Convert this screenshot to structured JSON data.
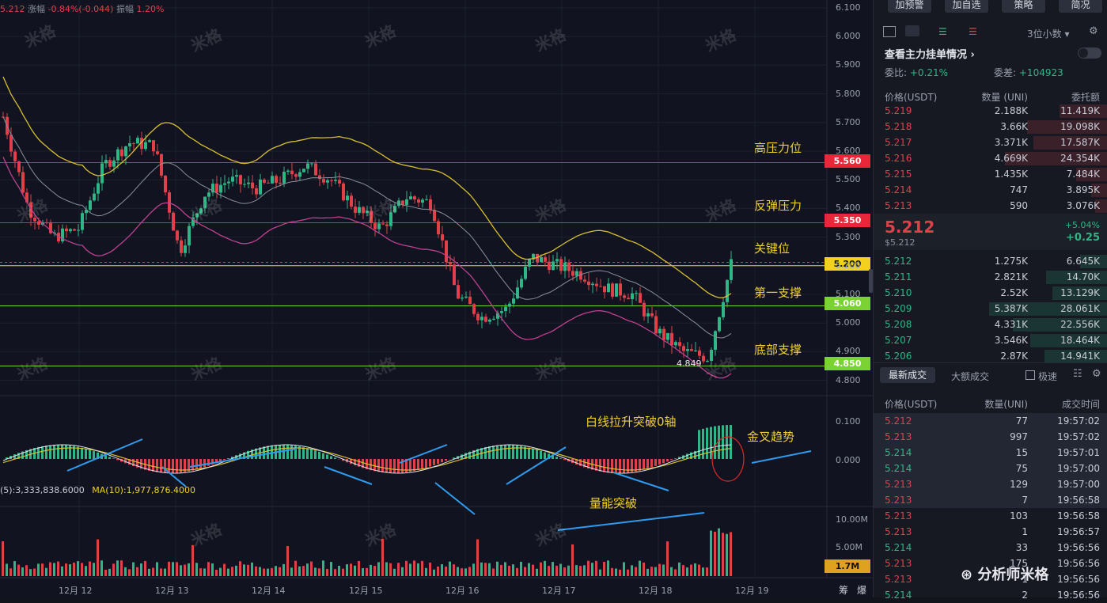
{
  "top_info": {
    "price": "5.212",
    "change_label": "涨幅",
    "change": "-0.84%(-0.044)",
    "amp_label": "振幅",
    "amp": "1.20%"
  },
  "annotations": {
    "high": "高压力位",
    "rebound": "反弹压力",
    "key": "关键位",
    "support1": "第一支撑",
    "bottom": "底部支撑",
    "low_mark": "4.849",
    "macd_white": "白线拉升突破0轴",
    "golden_cross": "金叉趋势",
    "volume_break": "量能突破"
  },
  "levels": [
    {
      "value": "5.560",
      "bg": "#e8283a",
      "fg": "#ffffff"
    },
    {
      "value": "5.350",
      "bg": "#e8283a",
      "fg": "#ffffff"
    },
    {
      "value": "5.200",
      "bg": "#f2d21e",
      "fg": "#111111"
    },
    {
      "value": "5.060",
      "bg": "#7ad233",
      "fg": "#ffffff"
    },
    {
      "value": "4.850",
      "bg": "#7ad233",
      "fg": "#ffffff"
    }
  ],
  "y_ticks": [
    "6.100",
    "6.000",
    "5.900",
    "5.800",
    "5.700",
    "5.600",
    "5.500",
    "5.400",
    "5.300",
    "5.200",
    "5.100",
    "5.000",
    "4.900",
    "4.800"
  ],
  "macd_ticks": [
    "0.100",
    "0.000"
  ],
  "vol_ticks": [
    "10.00M",
    "5.00M"
  ],
  "vol_current": "1.7M",
  "vol_info": "(5):3,333,838.6000",
  "vol_ma10": "MA(10):1,977,876.4000",
  "x_ticks": [
    "12月 12",
    "12月 13",
    "12月 14",
    "12月 15",
    "12月 16",
    "12月 17",
    "12月 18",
    "12月 19"
  ],
  "bottom_right": [
    "筹",
    "爆"
  ],
  "watermark": "米格",
  "side": {
    "buttons": [
      "加预警",
      "加自选",
      "策略",
      "简况"
    ],
    "precision": "3位小数",
    "view_orders": "查看主力挂单情况",
    "wei_bi_label": "委比:",
    "wei_bi": "+0.21%",
    "wei_cha_label": "委差:",
    "wei_cha": "+104923",
    "ob_headers": [
      "价格(USDT)",
      "数量 (UNI)",
      "委托额"
    ],
    "asks": [
      {
        "p": "5.219",
        "q": "2.188K",
        "a": "11.419K"
      },
      {
        "p": "5.218",
        "q": "3.66K",
        "a": "19.098K"
      },
      {
        "p": "5.217",
        "q": "3.371K",
        "a": "17.587K"
      },
      {
        "p": "5.216",
        "q": "4.669K",
        "a": "24.354K"
      },
      {
        "p": "5.215",
        "q": "1.435K",
        "a": "7.484K"
      },
      {
        "p": "5.214",
        "q": "747",
        "a": "3.895K"
      },
      {
        "p": "5.213",
        "q": "590",
        "a": "3.076K"
      }
    ],
    "last_price": "5.212",
    "last_usd": "$5.212",
    "last_pct": "+5.04%",
    "last_chg": "+0.25",
    "bids": [
      {
        "p": "5.212",
        "q": "1.275K",
        "a": "6.645K"
      },
      {
        "p": "5.211",
        "q": "2.821K",
        "a": "14.70K"
      },
      {
        "p": "5.210",
        "q": "2.52K",
        "a": "13.129K"
      },
      {
        "p": "5.209",
        "q": "5.387K",
        "a": "28.061K"
      },
      {
        "p": "5.208",
        "q": "4.331K",
        "a": "22.556K"
      },
      {
        "p": "5.207",
        "q": "3.546K",
        "a": "18.464K"
      },
      {
        "p": "5.206",
        "q": "2.87K",
        "a": "14.941K"
      }
    ],
    "trade_tabs": [
      "最新成交",
      "大额成交"
    ],
    "fast_label": "极速",
    "trade_headers": [
      "价格(USDT)",
      "数量(UNI)",
      "成交时间"
    ],
    "trades": [
      {
        "p": "5.212",
        "q": "77",
        "t": "19:57:02",
        "c": "red"
      },
      {
        "p": "5.213",
        "q": "997",
        "t": "19:57:02",
        "c": "red"
      },
      {
        "p": "5.214",
        "q": "15",
        "t": "19:57:01",
        "c": "grn"
      },
      {
        "p": "5.214",
        "q": "75",
        "t": "19:57:00",
        "c": "grn"
      },
      {
        "p": "5.213",
        "q": "129",
        "t": "19:57:00",
        "c": "red"
      },
      {
        "p": "5.213",
        "q": "7",
        "t": "19:56:58",
        "c": "red"
      },
      {
        "p": "5.213",
        "q": "103",
        "t": "19:56:58",
        "c": "red"
      },
      {
        "p": "5.213",
        "q": "1",
        "t": "19:56:57",
        "c": "red"
      },
      {
        "p": "5.214",
        "q": "33",
        "t": "19:56:56",
        "c": "grn"
      },
      {
        "p": "5.213",
        "q": "175",
        "t": "19:56:56",
        "c": "red"
      },
      {
        "p": "5.213",
        "q": "1",
        "t": "19:56:56",
        "c": "red"
      },
      {
        "p": "5.214",
        "q": "2",
        "t": "19:56:56",
        "c": "grn"
      }
    ],
    "brand": "分析师米格"
  }
}
